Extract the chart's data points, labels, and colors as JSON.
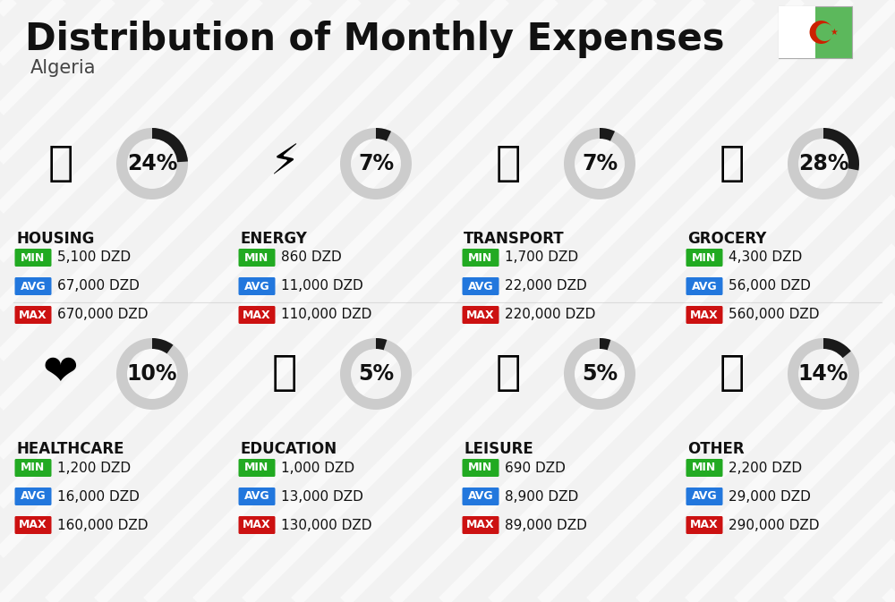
{
  "title": "Distribution of Monthly Expenses",
  "subtitle": "Algeria",
  "background_color": "#f2f2f2",
  "stripe_color": "#e8e8e8",
  "categories": [
    {
      "name": "HOUSING",
      "pct": 24,
      "min": "5,100 DZD",
      "avg": "67,000 DZD",
      "max": "670,000 DZD",
      "icon": "🏢",
      "row": 0,
      "col": 0
    },
    {
      "name": "ENERGY",
      "pct": 7,
      "min": "860 DZD",
      "avg": "11,000 DZD",
      "max": "110,000 DZD",
      "icon": "⚡",
      "row": 0,
      "col": 1
    },
    {
      "name": "TRANSPORT",
      "pct": 7,
      "min": "1,700 DZD",
      "avg": "22,000 DZD",
      "max": "220,000 DZD",
      "icon": "🚌",
      "row": 0,
      "col": 2
    },
    {
      "name": "GROCERY",
      "pct": 28,
      "min": "4,300 DZD",
      "avg": "56,000 DZD",
      "max": "560,000 DZD",
      "icon": "🛒",
      "row": 0,
      "col": 3
    },
    {
      "name": "HEALTHCARE",
      "pct": 10,
      "min": "1,200 DZD",
      "avg": "16,000 DZD",
      "max": "160,000 DZD",
      "icon": "❤️",
      "row": 1,
      "col": 0
    },
    {
      "name": "EDUCATION",
      "pct": 5,
      "min": "1,000 DZD",
      "avg": "13,000 DZD",
      "max": "130,000 DZD",
      "icon": "🎓",
      "row": 1,
      "col": 1
    },
    {
      "name": "LEISURE",
      "pct": 5,
      "min": "690 DZD",
      "avg": "8,900 DZD",
      "max": "89,000 DZD",
      "icon": "🛍️",
      "row": 1,
      "col": 2
    },
    {
      "name": "OTHER",
      "pct": 14,
      "min": "2,200 DZD",
      "avg": "29,000 DZD",
      "max": "290,000 DZD",
      "icon": "👜",
      "row": 1,
      "col": 3
    }
  ],
  "min_color": "#22aa22",
  "avg_color": "#2277dd",
  "max_color": "#cc1111",
  "donut_dark": "#1a1a1a",
  "donut_light": "#cccccc",
  "title_fontsize": 30,
  "subtitle_fontsize": 15,
  "category_fontsize": 12,
  "value_fontsize": 11,
  "pct_fontsize": 17,
  "flag_green": "#5cb85c",
  "flag_red": "#cc2200"
}
